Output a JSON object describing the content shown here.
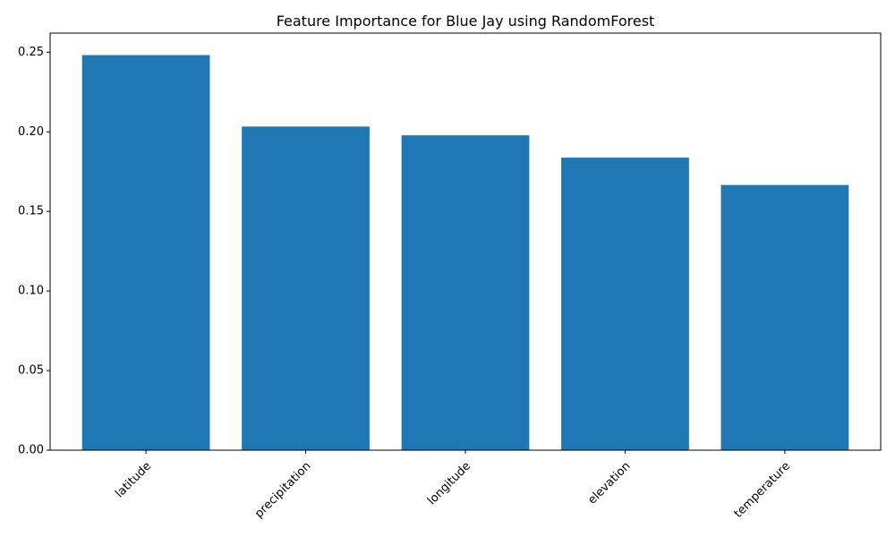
{
  "chart_data": {
    "type": "bar",
    "title": "Feature Importance for Blue Jay using RandomForest",
    "xlabel": "",
    "ylabel": "",
    "categories": [
      "latitude",
      "precipitation",
      "longitude",
      "elevation",
      "temperature"
    ],
    "values": [
      0.2482,
      0.2033,
      0.1978,
      0.1838,
      0.1666
    ],
    "ylim": [
      0,
      0.262
    ],
    "yticks": [
      0.0,
      0.05,
      0.1,
      0.15,
      0.2,
      0.25
    ],
    "ytick_labels": [
      "0.00",
      "0.05",
      "0.10",
      "0.15",
      "0.20",
      "0.25"
    ],
    "xtick_rotation_deg": 45,
    "bar_color": "#1f77b4",
    "grid": false,
    "legend": "none"
  }
}
